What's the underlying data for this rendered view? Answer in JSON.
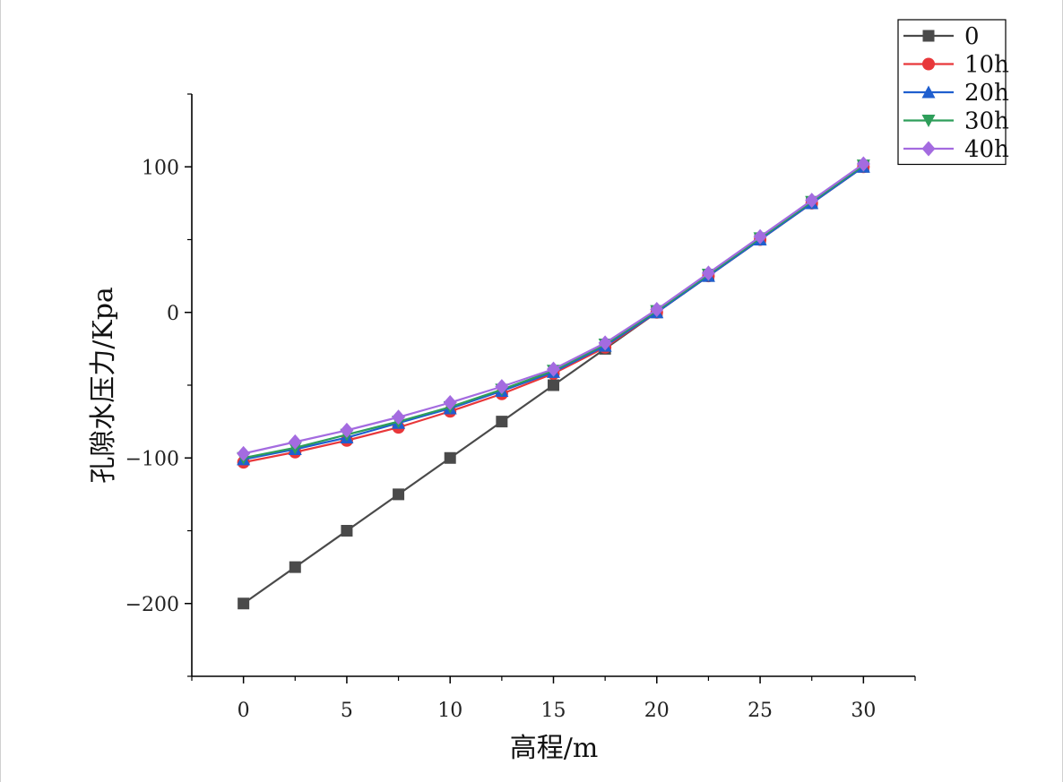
{
  "chart_data": {
    "type": "line",
    "xlabel": "高程/m",
    "ylabel": "孔隙水压力/Kpa",
    "xlim": [
      -2.5,
      32.5
    ],
    "ylim": [
      -250,
      150
    ],
    "xticks": [
      0,
      5,
      10,
      15,
      20,
      25,
      30
    ],
    "yticks": [
      -200,
      -100,
      0,
      100
    ],
    "xtick_labels": [
      "0",
      "5",
      "10",
      "15",
      "20",
      "25",
      "30"
    ],
    "ytick_labels": [
      "−200",
      "−100",
      "0",
      "100"
    ],
    "x": [
      0,
      2.5,
      5,
      7.5,
      10,
      12.5,
      15,
      17.5,
      20,
      22.5,
      25,
      27.5,
      30
    ],
    "legend_position": "top-right",
    "grid": false,
    "series": [
      {
        "name": "0",
        "color": "#4a4a4a",
        "marker": "square",
        "values": [
          -200,
          -175,
          -150,
          -125,
          -100,
          -75,
          -50,
          -25,
          0,
          25,
          50,
          75,
          100
        ]
      },
      {
        "name": "10h",
        "color": "#e8373a",
        "marker": "circle",
        "values": [
          -103,
          -96,
          -88,
          -79,
          -68,
          -56,
          -42,
          -24,
          0,
          25,
          50,
          75,
          100
        ]
      },
      {
        "name": "20h",
        "color": "#1f5fcf",
        "marker": "triangle-up",
        "values": [
          -101,
          -94,
          -86,
          -76,
          -66,
          -54,
          -41,
          -23,
          0,
          25,
          50,
          75,
          100
        ]
      },
      {
        "name": "30h",
        "color": "#2e9e5a",
        "marker": "triangle-down",
        "values": [
          -100,
          -93,
          -84,
          -75,
          -65,
          -53,
          -40,
          -22,
          1,
          26,
          51,
          76,
          101
        ]
      },
      {
        "name": "40h",
        "color": "#a46be0",
        "marker": "diamond",
        "values": [
          -97,
          -89,
          -81,
          -72,
          -62,
          -51,
          -39,
          -21,
          2,
          27,
          52,
          77,
          102
        ]
      }
    ]
  }
}
